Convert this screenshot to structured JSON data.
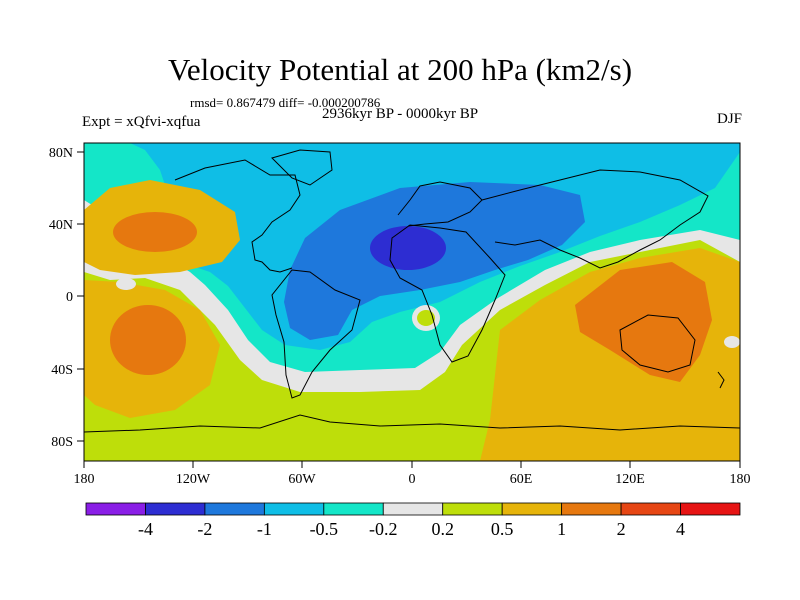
{
  "header": {
    "title": "Velocity Potential at 200 hPa (km2/s)",
    "stats": "rmsd= 0.867479 diff= -0.000200786",
    "experiment": "Expt = xQfvi-xqfua",
    "period": "2936kyr BP - 0000kyr BP",
    "season": "DJF"
  },
  "axes": {
    "y_ticks": [
      "80N",
      "40N",
      "0",
      "40S",
      "80S"
    ],
    "x_ticks": [
      "180",
      "120W",
      "60W",
      "0",
      "60E",
      "120E",
      "180"
    ]
  },
  "colorbar": {
    "colors": [
      "#8a1ee6",
      "#2d2dd2",
      "#1e78dc",
      "#0fbee6",
      "#14e6c8",
      "#e6e6e6",
      "#bede0a",
      "#e6b40a",
      "#e6780f",
      "#e64614",
      "#e61414"
    ],
    "labels": [
      "-4",
      "-2",
      "-1",
      "-0.5",
      "-0.2",
      "0.2",
      "0.5",
      "1",
      "2",
      "4"
    ]
  }
}
